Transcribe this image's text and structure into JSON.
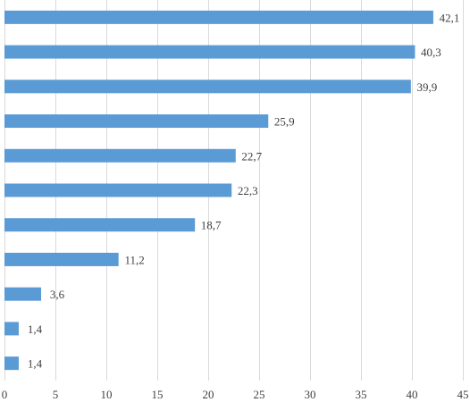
{
  "chart_data": {
    "type": "bar",
    "orientation": "horizontal",
    "values": [
      42.1,
      40.3,
      39.9,
      25.9,
      22.7,
      22.3,
      18.7,
      11.2,
      3.6,
      1.4,
      1.4
    ],
    "value_labels": [
      "42,1",
      "40,3",
      "39,9",
      "25,9",
      "22,7",
      "22,3",
      "18,7",
      "11,2",
      "3,6",
      "1,4",
      "1,4"
    ],
    "xlim": [
      0,
      45
    ],
    "x_ticks": [
      0,
      5,
      10,
      15,
      20,
      25,
      30,
      35,
      40,
      45
    ],
    "x_tick_labels": [
      "0",
      "5",
      "10",
      "15",
      "20",
      "25",
      "30",
      "35",
      "40",
      "45"
    ],
    "grid": true,
    "bar_color": "#5b9bd5",
    "grid_color": "#d9d9d9",
    "text_color": "#404040"
  }
}
